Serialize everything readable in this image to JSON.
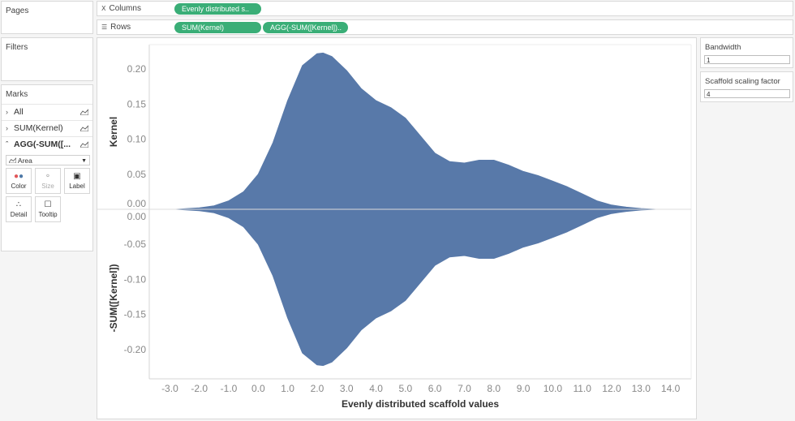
{
  "pages": {
    "title": "Pages"
  },
  "filters": {
    "title": "Filters"
  },
  "marks": {
    "title": "Marks",
    "cards": [
      {
        "label": "All",
        "expanded": false
      },
      {
        "label": "SUM(Kernel)",
        "expanded": false
      },
      {
        "label": "AGG(-SUM([...",
        "expanded": true
      }
    ],
    "mark_type": "Area",
    "buttons": {
      "color": "Color",
      "size": "Size",
      "label": "Label",
      "detail": "Detail",
      "tooltip": "Tooltip"
    }
  },
  "shelves": {
    "columns": {
      "label": "Columns",
      "pills": [
        "Evenly distributed s.."
      ]
    },
    "rows": {
      "label": "Rows",
      "pills": [
        "SUM(Kernel)",
        "AGG(-SUM([Kernel]).."
      ]
    }
  },
  "parameters": [
    {
      "title": "Bandwidth",
      "value": "1"
    },
    {
      "title": "Scaffold scaling factor",
      "value": "4"
    }
  ],
  "colors": {
    "area": "#5879a9",
    "pill": "#3aae77"
  },
  "chart_data": {
    "type": "area",
    "xlabel": "Evenly distributed scaffold values",
    "x_ticks": [
      -3.0,
      -2.0,
      -1.0,
      0.0,
      1.0,
      2.0,
      3.0,
      4.0,
      5.0,
      6.0,
      7.0,
      8.0,
      9.0,
      10.0,
      11.0,
      12.0,
      13.0,
      14.0
    ],
    "x_tick_labels": [
      "-3.0",
      "-2.0",
      "-1.0",
      "0.0",
      "1.0",
      "2.0",
      "3.0",
      "4.0",
      "5.0",
      "6.0",
      "7.0",
      "8.0",
      "9.0",
      "10.0",
      "11.0",
      "12.0",
      "13.0",
      "14.0"
    ],
    "xlim": [
      -3.7,
      14.7
    ],
    "panes": [
      {
        "ylabel": "Kernel",
        "ylim": [
          0,
          0.235
        ],
        "y_ticks": [
          0.0,
          0.05,
          0.1,
          0.15,
          0.2
        ],
        "y_tick_labels": [
          "0.00",
          "0.05",
          "0.10",
          "0.15",
          "0.20"
        ]
      },
      {
        "ylabel": "-SUM([Kernel])",
        "ylim": [
          -0.235,
          0
        ],
        "y_ticks": [
          0.0,
          -0.05,
          -0.1,
          -0.15,
          -0.2
        ],
        "y_tick_labels": [
          "0.00",
          "-0.05",
          "-0.10",
          "-0.15",
          "-0.20"
        ]
      }
    ],
    "series": [
      {
        "x": [
          -2.8,
          -2.0,
          -1.5,
          -1.0,
          -0.5,
          0.0,
          0.5,
          1.0,
          1.5,
          2.0,
          2.2,
          2.5,
          3.0,
          3.5,
          4.0,
          4.5,
          5.0,
          5.5,
          6.0,
          6.5,
          7.0,
          7.5,
          8.0,
          8.5,
          9.0,
          9.5,
          10.0,
          10.5,
          11.0,
          11.5,
          12.0,
          12.5,
          13.0,
          13.5,
          14.0
        ],
        "y": [
          0.0,
          0.002,
          0.005,
          0.012,
          0.025,
          0.05,
          0.095,
          0.155,
          0.205,
          0.222,
          0.223,
          0.218,
          0.198,
          0.172,
          0.155,
          0.145,
          0.13,
          0.105,
          0.08,
          0.068,
          0.066,
          0.07,
          0.07,
          0.063,
          0.054,
          0.048,
          0.04,
          0.032,
          0.022,
          0.012,
          0.006,
          0.003,
          0.001,
          0.0,
          0.0
        ]
      }
    ]
  }
}
